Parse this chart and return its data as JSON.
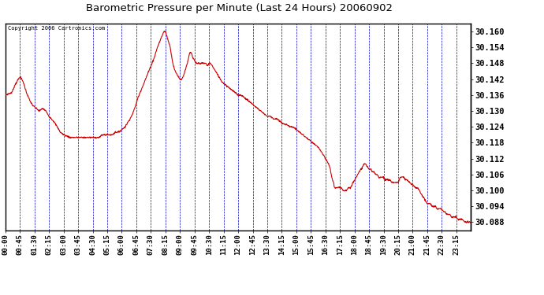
{
  "title": "Barometric Pressure per Minute (Last 24 Hours) 20060902",
  "copyright_text": "Copyright 2006 Cartronics.com",
  "line_color": "#cc0000",
  "background_color": "#ffffff",
  "grid_color": "#0000cc",
  "ylim": [
    30.085,
    30.163
  ],
  "ytick_values": [
    30.088,
    30.094,
    30.1,
    30.106,
    30.112,
    30.118,
    30.124,
    30.13,
    30.136,
    30.142,
    30.148,
    30.154,
    30.16
  ],
  "xtick_labels": [
    "00:00",
    "00:45",
    "01:30",
    "02:15",
    "03:00",
    "03:45",
    "04:30",
    "05:15",
    "06:00",
    "06:45",
    "07:30",
    "08:15",
    "09:00",
    "09:45",
    "10:30",
    "11:15",
    "12:00",
    "12:45",
    "13:30",
    "14:15",
    "15:00",
    "15:45",
    "16:30",
    "17:15",
    "18:00",
    "18:45",
    "19:30",
    "20:15",
    "21:00",
    "21:45",
    "22:30",
    "23:15"
  ],
  "control_points": [
    [
      0,
      30.136
    ],
    [
      20,
      30.137
    ],
    [
      30,
      30.14
    ],
    [
      45,
      30.143
    ],
    [
      55,
      30.141
    ],
    [
      65,
      30.137
    ],
    [
      75,
      30.134
    ],
    [
      85,
      30.132
    ],
    [
      95,
      30.131
    ],
    [
      105,
      30.13
    ],
    [
      115,
      30.131
    ],
    [
      125,
      30.13
    ],
    [
      135,
      30.128
    ],
    [
      150,
      30.126
    ],
    [
      160,
      30.124
    ],
    [
      170,
      30.122
    ],
    [
      180,
      30.121
    ],
    [
      200,
      30.12
    ],
    [
      220,
      30.12
    ],
    [
      240,
      30.12
    ],
    [
      260,
      30.12
    ],
    [
      280,
      30.12
    ],
    [
      290,
      30.12
    ],
    [
      300,
      30.121
    ],
    [
      310,
      30.121
    ],
    [
      320,
      30.121
    ],
    [
      330,
      30.121
    ],
    [
      340,
      30.122
    ],
    [
      350,
      30.122
    ],
    [
      360,
      30.123
    ],
    [
      370,
      30.124
    ],
    [
      380,
      30.126
    ],
    [
      390,
      30.128
    ],
    [
      400,
      30.131
    ],
    [
      410,
      30.135
    ],
    [
      420,
      30.138
    ],
    [
      430,
      30.141
    ],
    [
      440,
      30.144
    ],
    [
      450,
      30.147
    ],
    [
      460,
      30.15
    ],
    [
      470,
      30.154
    ],
    [
      480,
      30.157
    ],
    [
      490,
      30.16
    ],
    [
      495,
      30.16
    ],
    [
      500,
      30.158
    ],
    [
      510,
      30.154
    ],
    [
      515,
      30.15
    ],
    [
      520,
      30.147
    ],
    [
      525,
      30.145
    ],
    [
      530,
      30.144
    ],
    [
      535,
      30.143
    ],
    [
      540,
      30.142
    ],
    [
      545,
      30.142
    ],
    [
      550,
      30.143
    ],
    [
      555,
      30.145
    ],
    [
      560,
      30.147
    ],
    [
      565,
      30.149
    ],
    [
      570,
      30.152
    ],
    [
      575,
      30.152
    ],
    [
      580,
      30.15
    ],
    [
      585,
      30.149
    ],
    [
      590,
      30.148
    ],
    [
      600,
      30.148
    ],
    [
      610,
      30.148
    ],
    [
      615,
      30.148
    ],
    [
      620,
      30.148
    ],
    [
      625,
      30.147
    ],
    [
      630,
      30.148
    ],
    [
      635,
      30.148
    ],
    [
      640,
      30.147
    ],
    [
      645,
      30.146
    ],
    [
      650,
      30.145
    ],
    [
      655,
      30.144
    ],
    [
      660,
      30.143
    ],
    [
      665,
      30.142
    ],
    [
      670,
      30.141
    ],
    [
      680,
      30.14
    ],
    [
      690,
      30.139
    ],
    [
      700,
      30.138
    ],
    [
      710,
      30.137
    ],
    [
      720,
      30.136
    ],
    [
      730,
      30.136
    ],
    [
      740,
      30.135
    ],
    [
      750,
      30.134
    ],
    [
      760,
      30.133
    ],
    [
      770,
      30.132
    ],
    [
      780,
      30.131
    ],
    [
      790,
      30.13
    ],
    [
      800,
      30.129
    ],
    [
      810,
      30.128
    ],
    [
      820,
      30.128
    ],
    [
      830,
      30.127
    ],
    [
      840,
      30.127
    ],
    [
      850,
      30.126
    ],
    [
      860,
      30.125
    ],
    [
      870,
      30.125
    ],
    [
      880,
      30.124
    ],
    [
      890,
      30.124
    ],
    [
      900,
      30.123
    ],
    [
      910,
      30.122
    ],
    [
      920,
      30.121
    ],
    [
      930,
      30.12
    ],
    [
      940,
      30.119
    ],
    [
      950,
      30.118
    ],
    [
      960,
      30.117
    ],
    [
      970,
      30.116
    ],
    [
      975,
      30.115
    ],
    [
      980,
      30.114
    ],
    [
      985,
      30.113
    ],
    [
      990,
      30.112
    ],
    [
      995,
      30.111
    ],
    [
      1000,
      30.11
    ],
    [
      1005,
      30.108
    ],
    [
      1008,
      30.106
    ],
    [
      1010,
      30.105
    ],
    [
      1012,
      30.104
    ],
    [
      1015,
      30.103
    ],
    [
      1018,
      30.101
    ],
    [
      1020,
      30.101
    ],
    [
      1025,
      30.101
    ],
    [
      1030,
      30.101
    ],
    [
      1035,
      30.101
    ],
    [
      1040,
      30.101
    ],
    [
      1045,
      30.1
    ],
    [
      1050,
      30.1
    ],
    [
      1055,
      30.1
    ],
    [
      1060,
      30.101
    ],
    [
      1065,
      30.101
    ],
    [
      1068,
      30.101
    ],
    [
      1072,
      30.102
    ],
    [
      1075,
      30.103
    ],
    [
      1080,
      30.104
    ],
    [
      1085,
      30.105
    ],
    [
      1090,
      30.106
    ],
    [
      1095,
      30.107
    ],
    [
      1100,
      30.108
    ],
    [
      1105,
      30.109
    ],
    [
      1110,
      30.11
    ],
    [
      1112,
      30.11
    ],
    [
      1115,
      30.11
    ],
    [
      1118,
      30.109
    ],
    [
      1120,
      30.109
    ],
    [
      1125,
      30.108
    ],
    [
      1130,
      30.108
    ],
    [
      1135,
      30.107
    ],
    [
      1140,
      30.107
    ],
    [
      1145,
      30.106
    ],
    [
      1150,
      30.106
    ],
    [
      1155,
      30.105
    ],
    [
      1160,
      30.105
    ],
    [
      1165,
      30.105
    ],
    [
      1170,
      30.105
    ],
    [
      1175,
      30.104
    ],
    [
      1180,
      30.104
    ],
    [
      1185,
      30.104
    ],
    [
      1190,
      30.104
    ],
    [
      1195,
      30.103
    ],
    [
      1200,
      30.103
    ],
    [
      1210,
      30.103
    ],
    [
      1215,
      30.103
    ],
    [
      1218,
      30.104
    ],
    [
      1222,
      30.105
    ],
    [
      1227,
      30.105
    ],
    [
      1232,
      30.105
    ],
    [
      1237,
      30.104
    ],
    [
      1242,
      30.104
    ],
    [
      1250,
      30.103
    ],
    [
      1260,
      30.102
    ],
    [
      1270,
      30.101
    ],
    [
      1275,
      30.101
    ],
    [
      1280,
      30.1
    ],
    [
      1285,
      30.099
    ],
    [
      1290,
      30.098
    ],
    [
      1295,
      30.097
    ],
    [
      1300,
      30.096
    ],
    [
      1305,
      30.095
    ],
    [
      1310,
      30.095
    ],
    [
      1315,
      30.095
    ],
    [
      1320,
      30.094
    ],
    [
      1325,
      30.094
    ],
    [
      1330,
      30.094
    ],
    [
      1335,
      30.093
    ],
    [
      1340,
      30.093
    ],
    [
      1345,
      30.093
    ],
    [
      1350,
      30.093
    ],
    [
      1355,
      30.092
    ],
    [
      1360,
      30.092
    ],
    [
      1365,
      30.091
    ],
    [
      1370,
      30.091
    ],
    [
      1375,
      30.091
    ],
    [
      1380,
      30.09
    ],
    [
      1385,
      30.09
    ],
    [
      1390,
      30.09
    ],
    [
      1395,
      30.09
    ],
    [
      1400,
      30.089
    ],
    [
      1405,
      30.089
    ],
    [
      1410,
      30.089
    ],
    [
      1415,
      30.089
    ],
    [
      1420,
      30.088
    ],
    [
      1425,
      30.088
    ],
    [
      1430,
      30.088
    ],
    [
      1435,
      30.088
    ],
    [
      1439,
      30.088
    ]
  ]
}
